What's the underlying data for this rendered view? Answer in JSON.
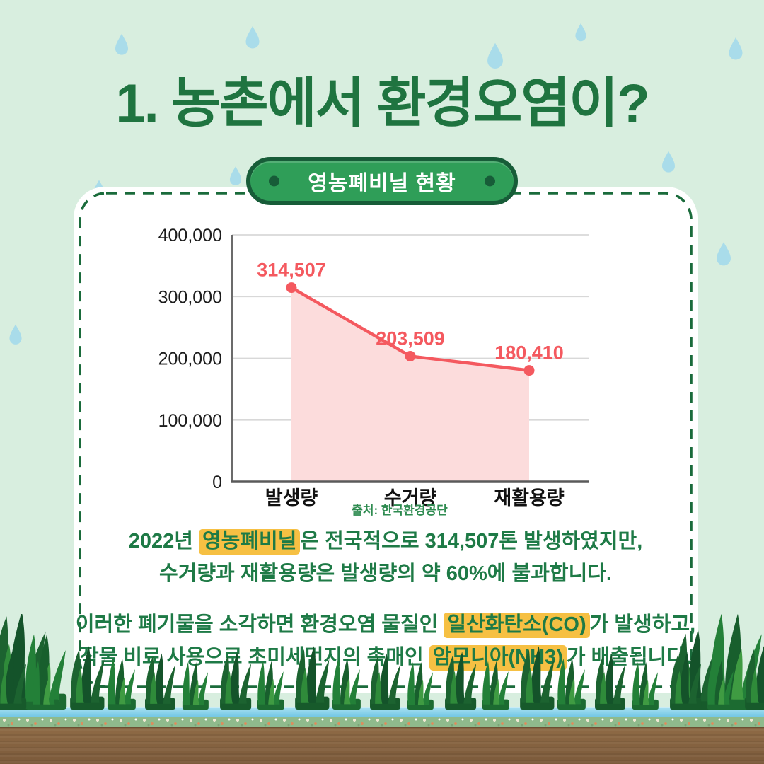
{
  "page": {
    "title": "1. 농촌에서 환경오염이?",
    "badge_label": "영농폐비닐 현황"
  },
  "chart_data": {
    "type": "area",
    "title": "영농폐비닐 현황",
    "categories": [
      "발생량",
      "수거량",
      "재활용량"
    ],
    "values": [
      314507,
      203509,
      180410
    ],
    "value_labels": [
      "314,507",
      "203,509",
      "180,410"
    ],
    "y_ticks": [
      "400,000",
      "300,000",
      "200,000",
      "100,000",
      "0"
    ],
    "ylim": [
      0,
      400000
    ],
    "grid": true,
    "legend": false,
    "source": "출처: 한국환경공단"
  },
  "body_text": {
    "p1_l1_pre": "2022년 ",
    "p1_l1_hl": "영농폐비닐",
    "p1_l1_post": "은 전국적으로 314,507톤 발생하였지만,",
    "p1_l2": "수거량과 재활용량은 발생량의 약 60%에 불과합니다.",
    "p2_l1_pre": "이러한 폐기물을 소각하면 환경오염 물질인 ",
    "p2_l1_hl": "일산화탄소(CO)",
    "p2_l1_post": "가 발생하고,",
    "p2_l2_pre": "작물 비료 사용으로 초미세먼지의 촉매인 ",
    "p2_l2_hl": "암모니아(NH3)",
    "p2_l2_post": "가 배출됩니다."
  },
  "colors": {
    "background": "#d8eedf",
    "title": "#1f7440",
    "body-text": "#1e7a46",
    "highlight": "#f6c043",
    "badge-fill": "#2f9e58",
    "badge-border": "#175c38",
    "card-border": "#1a6b3b",
    "chart-line": "#f4595f",
    "chart-fill": "#fcdcdc",
    "source": "#2e8b50",
    "raindrop": "#a9dcea"
  }
}
